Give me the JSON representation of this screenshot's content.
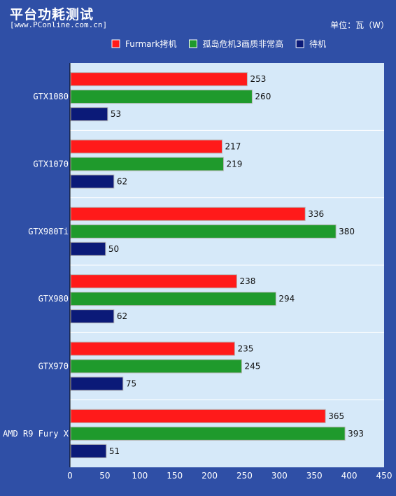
{
  "header": {
    "title": "平台功耗测试",
    "source": "[www.PConline.com.cn]",
    "unit": "单位：瓦（W）"
  },
  "colors": {
    "background": "#2f4fa6",
    "plot_bg": "#d6e9f9",
    "furmark": "#ff1a1a",
    "game": "#1f9a2c",
    "idle": "#0b1a78"
  },
  "chart_data": {
    "type": "bar",
    "orientation": "horizontal",
    "categories": [
      "GTX1080",
      "GTX1070",
      "GTX980Ti",
      "GTX980",
      "GTX970",
      "AMD R9 Fury X"
    ],
    "series": [
      {
        "name": "Furmark拷机",
        "values": [
          253,
          217,
          336,
          238,
          235,
          365
        ]
      },
      {
        "name": "孤岛危机3画质非常高",
        "values": [
          260,
          219,
          380,
          294,
          245,
          393
        ]
      },
      {
        "name": "待机",
        "values": [
          53,
          62,
          50,
          62,
          75,
          51
        ]
      }
    ],
    "xlim": [
      0,
      450
    ],
    "x_ticks": [
      0,
      50,
      100,
      150,
      200,
      250,
      300,
      350,
      400,
      450
    ],
    "x_tick_labels": [
      "0",
      "50",
      "100",
      "150",
      "200",
      "250",
      "300",
      "350",
      "400",
      "450"
    ],
    "legend_position": "top-right",
    "grid": false
  }
}
